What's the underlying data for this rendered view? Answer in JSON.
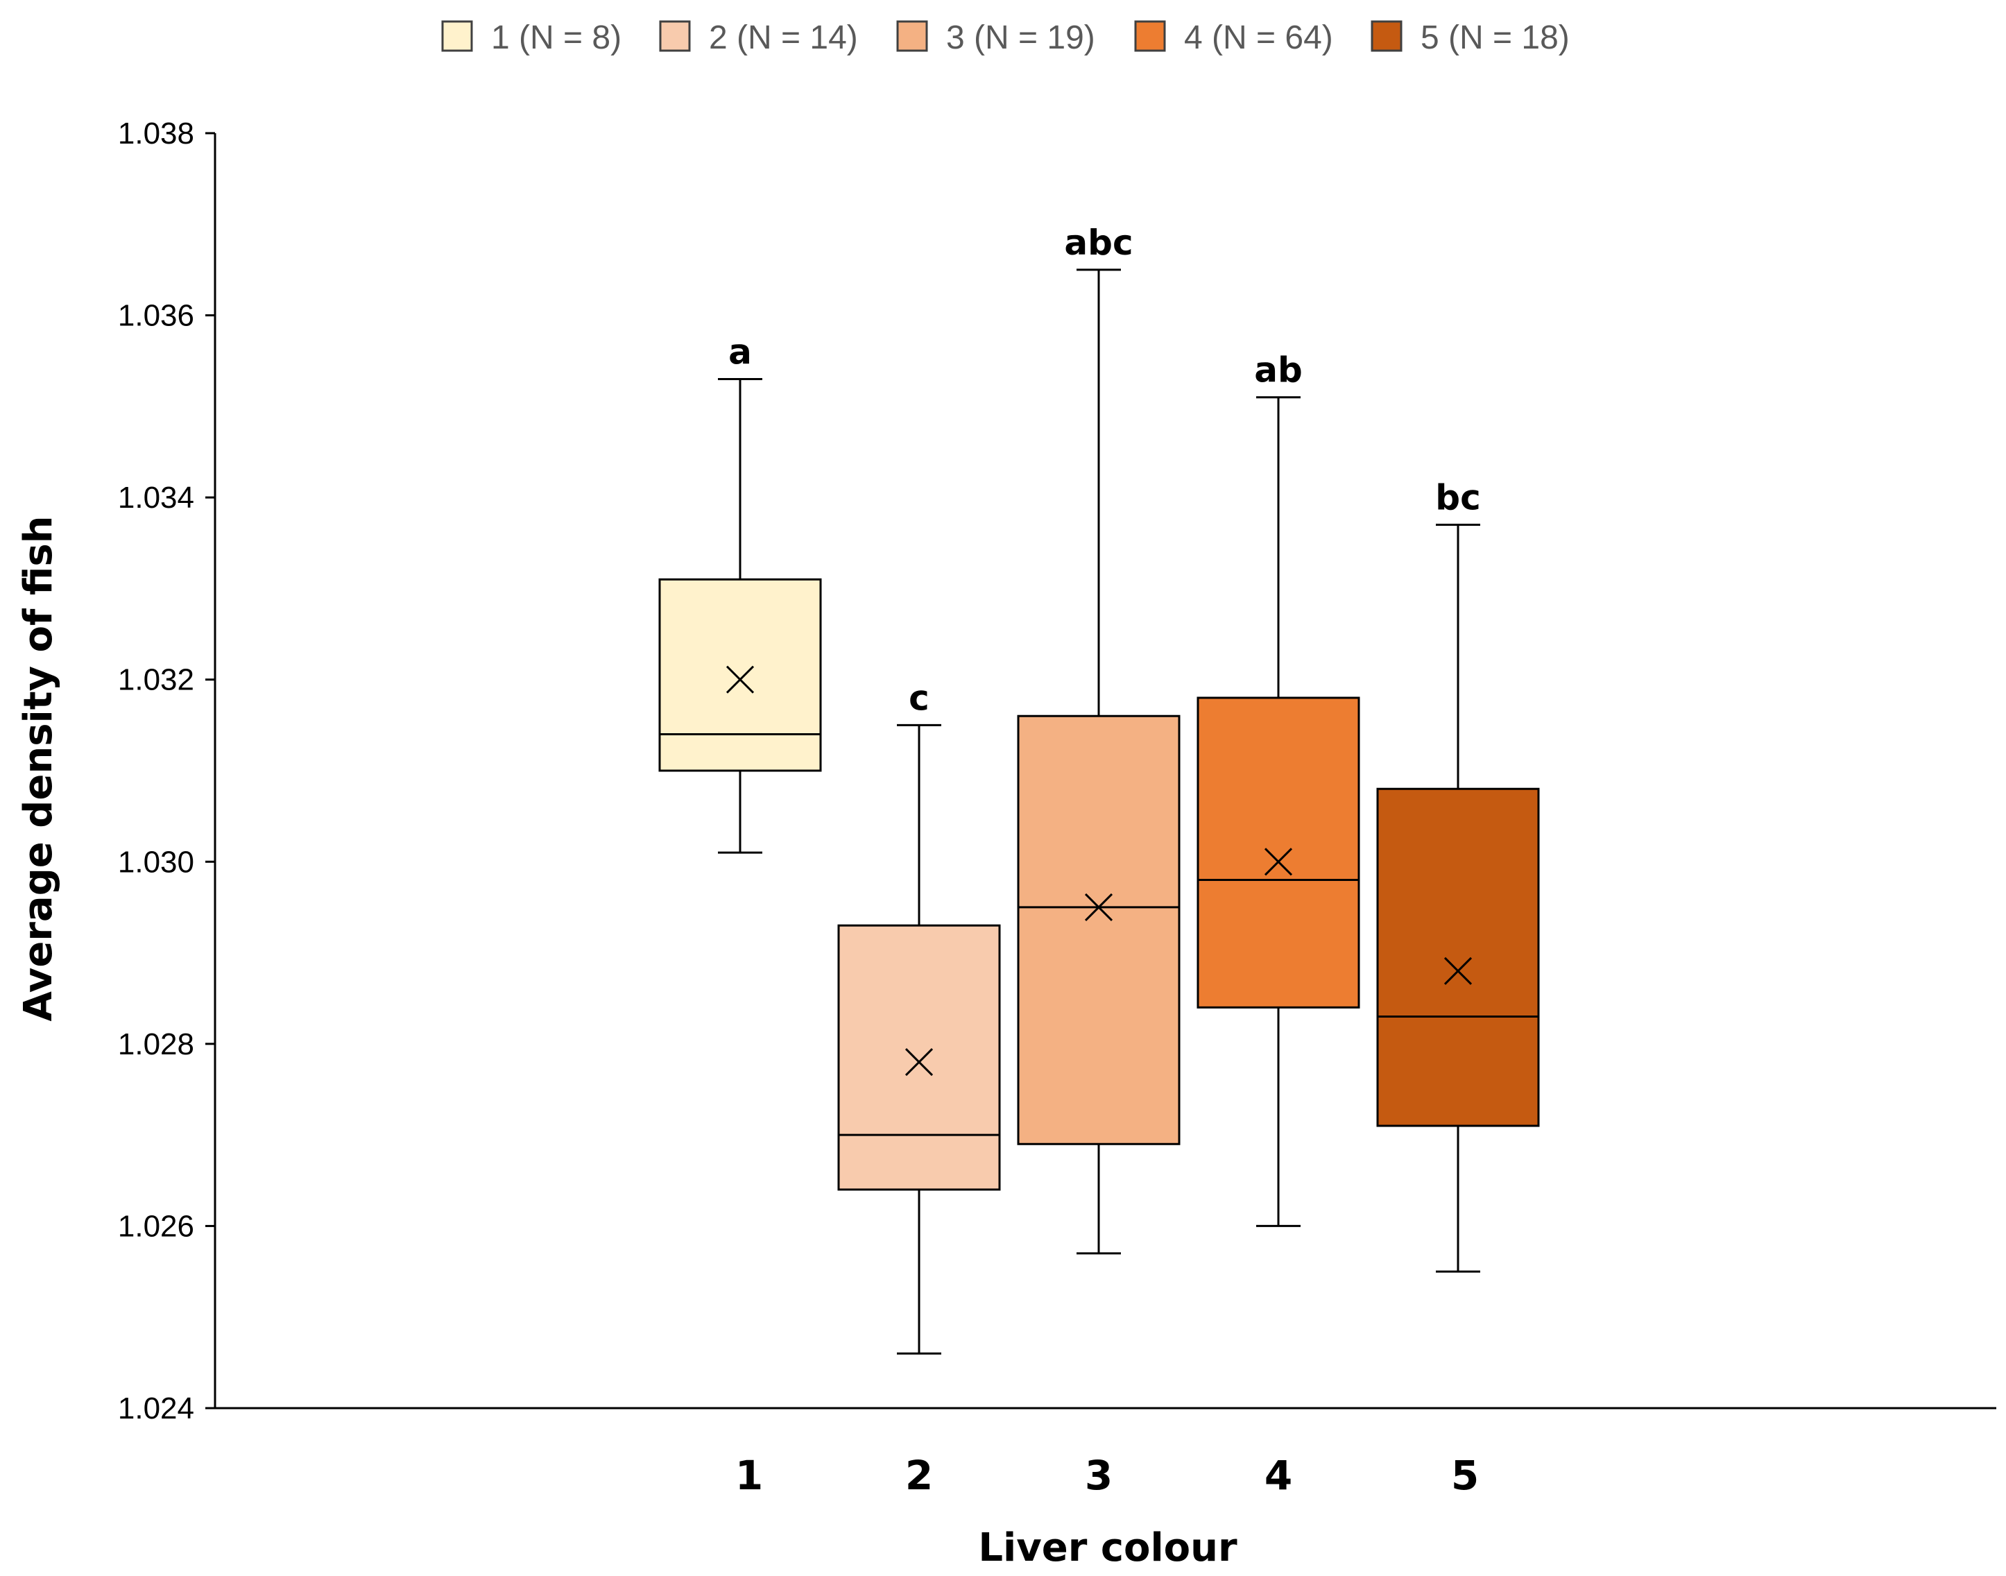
{
  "chart_data": {
    "type": "boxplot",
    "title": "",
    "xlabel": "Liver colour",
    "ylabel": "Average density of fish",
    "ylim": [
      1.024,
      1.038
    ],
    "yticks": [
      "1.024",
      "1.026",
      "1.028",
      "1.030",
      "1.032",
      "1.034",
      "1.036",
      "1.038"
    ],
    "yticks_values": [
      1.024,
      1.026,
      1.028,
      1.03,
      1.032,
      1.034,
      1.036,
      1.038
    ],
    "legend_position": "top-center",
    "categories": [
      "1",
      "2",
      "3",
      "4",
      "5"
    ],
    "series": [
      {
        "category": "1",
        "legend": "1 (N = 8)",
        "color": "#FFF2CC",
        "min": 1.0301,
        "q1": 1.031,
        "median": 1.0314,
        "q3": 1.0331,
        "max": 1.0353,
        "mean": 1.032,
        "sig": "a"
      },
      {
        "category": "2",
        "legend": "2 (N = 14)",
        "color": "#F8CBAD",
        "min": 1.0246,
        "q1": 1.0264,
        "median": 1.027,
        "q3": 1.0293,
        "max": 1.0315,
        "mean": 1.0278,
        "sig": "c"
      },
      {
        "category": "3",
        "legend": "3 (N = 19)",
        "color": "#F4B183",
        "min": 1.0257,
        "q1": 1.0269,
        "median": 1.0295,
        "q3": 1.0316,
        "max": 1.0365,
        "mean": 1.0295,
        "sig": "abc"
      },
      {
        "category": "4",
        "legend": "4 (N = 64)",
        "color": "#ED7D31",
        "min": 1.026,
        "q1": 1.0284,
        "median": 1.0298,
        "q3": 1.0318,
        "max": 1.0351,
        "mean": 1.03,
        "sig": "ab"
      },
      {
        "category": "5",
        "legend": "5 (N = 18)",
        "color": "#C55A11",
        "min": 1.0255,
        "q1": 1.0271,
        "median": 1.0283,
        "q3": 1.0308,
        "max": 1.0337,
        "mean": 1.0288,
        "sig": "bc"
      }
    ],
    "axis_color": "#000000",
    "legend_text_color": "#595959"
  }
}
